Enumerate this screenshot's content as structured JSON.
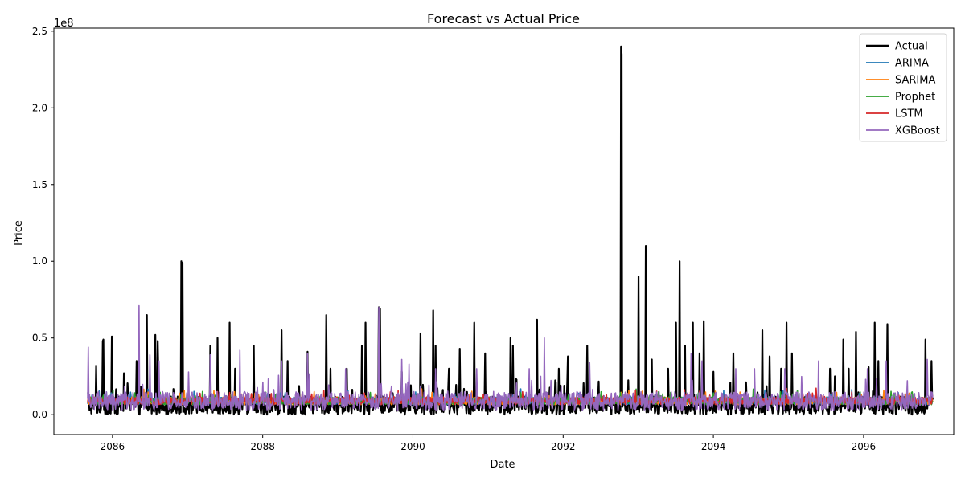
{
  "chart_data": {
    "type": "line",
    "title": "Forecast vs Actual Price",
    "xlabel": "Date",
    "ylabel": "Price",
    "y_offset_label": "1e8",
    "y_multiplier": 100000000,
    "xlim": [
      2085.22,
      2097.2
    ],
    "ylim": [
      -0.13,
      2.52
    ],
    "x_ticks": [
      2086,
      2088,
      2090,
      2092,
      2094,
      2096
    ],
    "x_tick_labels": [
      "2086",
      "2088",
      "2090",
      "2092",
      "2094",
      "2096"
    ],
    "y_ticks": [
      0.0,
      0.5,
      1.0,
      1.5,
      2.0,
      2.5
    ],
    "y_tick_labels": [
      "0.0",
      "0.5",
      "1.0",
      "1.5",
      "2.0",
      "2.5"
    ],
    "grid": false,
    "legend_position": "top-right",
    "x_range": [
      2085.67,
      2096.92
    ],
    "series": [
      {
        "name": "Actual",
        "color": "#000000",
        "base": 0.06,
        "noise": 0.12,
        "peaks": [
          [
            2085.78,
            0.32
          ],
          [
            2085.87,
            0.48
          ],
          [
            2085.88,
            0.49
          ],
          [
            2085.99,
            0.51
          ],
          [
            2086.15,
            0.27
          ],
          [
            2086.32,
            0.35
          ],
          [
            2086.46,
            0.65
          ],
          [
            2086.57,
            0.52
          ],
          [
            2086.6,
            0.48
          ],
          [
            2086.92,
            1.0
          ],
          [
            2086.93,
            0.99
          ],
          [
            2087.3,
            0.45
          ],
          [
            2087.4,
            0.5
          ],
          [
            2087.56,
            0.6
          ],
          [
            2087.63,
            0.3
          ],
          [
            2087.88,
            0.45
          ],
          [
            2088.25,
            0.55
          ],
          [
            2088.33,
            0.35
          ],
          [
            2088.6,
            0.41
          ],
          [
            2088.85,
            0.65
          ],
          [
            2088.9,
            0.3
          ],
          [
            2089.12,
            0.3
          ],
          [
            2089.32,
            0.45
          ],
          [
            2089.37,
            0.6
          ],
          [
            2089.55,
            0.7
          ],
          [
            2089.56,
            0.69
          ],
          [
            2089.85,
            0.28
          ],
          [
            2090.1,
            0.53
          ],
          [
            2090.27,
            0.68
          ],
          [
            2090.3,
            0.45
          ],
          [
            2090.48,
            0.3
          ],
          [
            2090.62,
            0.43
          ],
          [
            2090.82,
            0.6
          ],
          [
            2090.96,
            0.4
          ],
          [
            2091.3,
            0.5
          ],
          [
            2091.33,
            0.45
          ],
          [
            2091.65,
            0.62
          ],
          [
            2091.94,
            0.3
          ],
          [
            2092.06,
            0.38
          ],
          [
            2092.32,
            0.45
          ],
          [
            2092.77,
            2.4
          ],
          [
            2092.78,
            2.35
          ],
          [
            2093.0,
            0.9
          ],
          [
            2093.1,
            1.1
          ],
          [
            2093.18,
            0.36
          ],
          [
            2093.4,
            0.3
          ],
          [
            2093.5,
            0.6
          ],
          [
            2093.55,
            1.0
          ],
          [
            2093.62,
            0.45
          ],
          [
            2093.73,
            0.6
          ],
          [
            2093.82,
            0.4
          ],
          [
            2093.87,
            0.61
          ],
          [
            2094.0,
            0.28
          ],
          [
            2094.27,
            0.4
          ],
          [
            2094.65,
            0.55
          ],
          [
            2094.75,
            0.38
          ],
          [
            2094.9,
            0.3
          ],
          [
            2094.97,
            0.6
          ],
          [
            2095.05,
            0.4
          ],
          [
            2095.55,
            0.3
          ],
          [
            2095.62,
            0.25
          ],
          [
            2095.73,
            0.49
          ],
          [
            2095.8,
            0.3
          ],
          [
            2095.9,
            0.54
          ],
          [
            2096.07,
            0.31
          ],
          [
            2096.15,
            0.6
          ],
          [
            2096.2,
            0.35
          ],
          [
            2096.32,
            0.59
          ],
          [
            2096.82,
            0.49
          ],
          [
            2096.9,
            0.35
          ]
        ]
      },
      {
        "name": "ARIMA",
        "color": "#1f77b4",
        "base": 0.09,
        "noise": 0.05,
        "peaks": []
      },
      {
        "name": "SARIMA",
        "color": "#ff7f0e",
        "base": 0.09,
        "noise": 0.05,
        "peaks": [
          [
            2092.85,
            0.12
          ],
          [
            2095.97,
            0.13
          ]
        ]
      },
      {
        "name": "Prophet",
        "color": "#2ca02c",
        "base": 0.09,
        "noise": 0.05,
        "peaks": [
          [
            2094.15,
            0.11
          ],
          [
            2090.95,
            0.12
          ]
        ]
      },
      {
        "name": "LSTM",
        "color": "#d62728",
        "base": 0.09,
        "noise": 0.05,
        "peaks": [
          [
            2093.1,
            0.11
          ],
          [
            2095.97,
            0.12
          ]
        ]
      },
      {
        "name": "XGBoost",
        "color": "#9467bd",
        "base": 0.09,
        "noise": 0.12,
        "peaks": [
          [
            2085.68,
            0.44
          ],
          [
            2086.35,
            0.71
          ],
          [
            2086.5,
            0.39
          ],
          [
            2086.62,
            0.35
          ],
          [
            2087.3,
            0.39
          ],
          [
            2087.7,
            0.42
          ],
          [
            2088.25,
            0.35
          ],
          [
            2088.6,
            0.4
          ],
          [
            2089.1,
            0.3
          ],
          [
            2089.55,
            0.7
          ],
          [
            2089.85,
            0.36
          ],
          [
            2089.95,
            0.33
          ],
          [
            2090.3,
            0.3
          ],
          [
            2090.85,
            0.3
          ],
          [
            2091.55,
            0.3
          ],
          [
            2091.75,
            0.5
          ],
          [
            2092.35,
            0.34
          ],
          [
            2093.7,
            0.4
          ],
          [
            2093.85,
            0.35
          ],
          [
            2094.3,
            0.3
          ],
          [
            2094.55,
            0.3
          ],
          [
            2094.95,
            0.3
          ],
          [
            2095.4,
            0.35
          ],
          [
            2096.05,
            0.3
          ],
          [
            2096.3,
            0.35
          ],
          [
            2096.85,
            0.36
          ]
        ]
      }
    ]
  }
}
